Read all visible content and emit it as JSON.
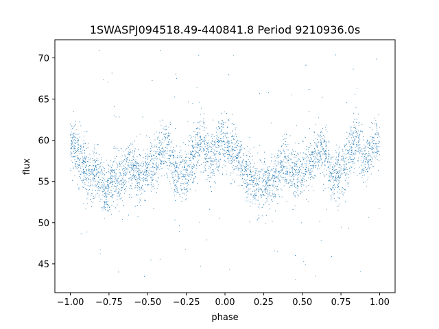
{
  "chart_data": {
    "type": "scatter",
    "title": "1SWASPJ094518.49-440841.8 Period 9210936.0s",
    "xlabel": "phase",
    "ylabel": "flux",
    "xlim": [
      -1.1,
      1.1
    ],
    "ylim": [
      41.5,
      72.2
    ],
    "xticks": [
      -1.0,
      -0.75,
      -0.5,
      -0.25,
      0.0,
      0.25,
      0.5,
      0.75,
      1.0
    ],
    "xtick_labels": [
      "−1.00",
      "−0.75",
      "−0.50",
      "−0.25",
      "0.00",
      "0.25",
      "0.50",
      "0.75",
      "1.00"
    ],
    "yticks": [
      45,
      50,
      55,
      60,
      65,
      70
    ],
    "ytick_labels": [
      "45",
      "50",
      "55",
      "60",
      "65",
      "70"
    ],
    "grid": false,
    "marker_color": "#1f77b4",
    "series": [
      {
        "description_points": [
          [
            -1.0,
            59.5
          ],
          [
            -0.97,
            59.0
          ],
          [
            -0.94,
            57.5
          ],
          [
            -0.9,
            56.5
          ],
          [
            -0.87,
            55.0
          ],
          [
            -0.84,
            56.5
          ],
          [
            -0.8,
            54.5
          ],
          [
            -0.77,
            53.5
          ],
          [
            -0.75,
            55.0
          ],
          [
            -0.72,
            55.5
          ],
          [
            -0.68,
            55.0
          ],
          [
            -0.65,
            56.5
          ],
          [
            -0.62,
            57.0
          ],
          [
            -0.58,
            56.5
          ],
          [
            -0.55,
            55.5
          ],
          [
            -0.52,
            56.0
          ],
          [
            -0.49,
            56.5
          ],
          [
            -0.45,
            57.0
          ],
          [
            -0.42,
            58.0
          ],
          [
            -0.38,
            59.0
          ],
          [
            -0.35,
            58.5
          ],
          [
            -0.32,
            56.0
          ],
          [
            -0.28,
            55.5
          ],
          [
            -0.25,
            56.0
          ],
          [
            -0.22,
            57.5
          ],
          [
            -0.18,
            59.0
          ],
          [
            -0.15,
            60.0
          ],
          [
            -0.12,
            58.5
          ],
          [
            -0.08,
            57.5
          ],
          [
            -0.05,
            59.0
          ],
          [
            -0.02,
            60.0
          ],
          [
            0.0,
            59.5
          ],
          [
            0.03,
            59.0
          ],
          [
            0.06,
            58.5
          ],
          [
            0.1,
            57.0
          ],
          [
            0.13,
            56.0
          ],
          [
            0.16,
            55.5
          ],
          [
            0.2,
            54.5
          ],
          [
            0.23,
            53.5
          ],
          [
            0.25,
            55.0
          ],
          [
            0.28,
            55.5
          ],
          [
            0.32,
            55.0
          ],
          [
            0.35,
            56.5
          ],
          [
            0.38,
            57.0
          ],
          [
            0.42,
            56.5
          ],
          [
            0.45,
            55.5
          ],
          [
            0.48,
            56.0
          ],
          [
            0.51,
            56.5
          ],
          [
            0.55,
            57.0
          ],
          [
            0.58,
            58.0
          ],
          [
            0.62,
            59.0
          ],
          [
            0.65,
            58.5
          ],
          [
            0.68,
            56.0
          ],
          [
            0.72,
            55.5
          ],
          [
            0.75,
            56.0
          ],
          [
            0.78,
            57.5
          ],
          [
            0.82,
            59.0
          ],
          [
            0.85,
            60.0
          ],
          [
            0.88,
            58.5
          ],
          [
            0.92,
            57.5
          ],
          [
            0.95,
            59.0
          ],
          [
            0.98,
            60.0
          ],
          [
            1.0,
            59.5
          ]
        ]
      }
    ]
  }
}
